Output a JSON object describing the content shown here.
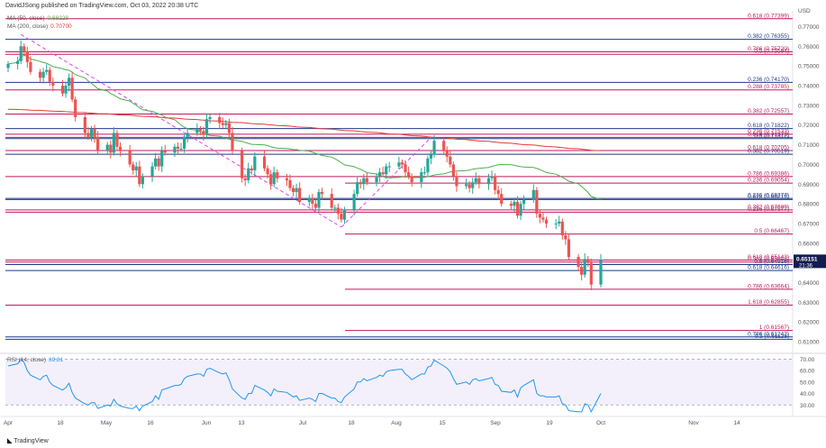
{
  "header": {
    "text": "DavidJSong published on TradingView.com, Oct 03, 2022 20:38 UTC"
  },
  "footer": {
    "brand": "TradingView"
  },
  "legend": {
    "ma50": {
      "label": "MA (50, close)",
      "value": "0.68228",
      "color": "#4caf50"
    },
    "ma200": {
      "label": "MA (200, close)",
      "value": "0.70700",
      "color": "#e53935"
    },
    "rsi": {
      "label": "RSI (14, close)",
      "value": "39.81",
      "color": "#2196f3"
    }
  },
  "price_axis": {
    "unit": "USD",
    "ticks": [
      "0.77000",
      "0.76000",
      "0.75000",
      "0.74000",
      "0.73000",
      "0.72000",
      "0.71000",
      "0.70000",
      "0.69000",
      "0.68000",
      "0.67000",
      "0.66000",
      "0.65000",
      "0.64000",
      "0.63000",
      "0.62000",
      "0.61000"
    ],
    "current_price": "0.65151",
    "countdown": "21:36"
  },
  "rsi_axis": {
    "ticks": [
      "70.00",
      "60.00",
      "50.00",
      "40.00",
      "30.00"
    ]
  },
  "time_axis": {
    "ticks": [
      "Apr",
      "18",
      "May",
      "16",
      "Jun",
      "13",
      "Jul",
      "18",
      "Aug",
      "15",
      "Sep",
      "19",
      "Oct",
      "Nov",
      "14"
    ]
  },
  "chart_data": [
    {
      "type": "line",
      "subtype": "candlestick",
      "title": "",
      "y_unit": "USD",
      "ylim": [
        0.605,
        0.778
      ],
      "colors": {
        "up": "#26a69a",
        "down": "#ef5350"
      },
      "candles_note": "approximate daily OHLC, Apr–Oct 2022",
      "x": [
        "Apr 01",
        "Apr 04",
        "Apr 05",
        "Apr 06",
        "Apr 07",
        "Apr 08",
        "Apr 11",
        "Apr 12",
        "Apr 13",
        "Apr 14",
        "Apr 15",
        "Apr 18",
        "Apr 19",
        "Apr 20",
        "Apr 21",
        "Apr 22",
        "Apr 25",
        "Apr 26",
        "Apr 27",
        "Apr 28",
        "Apr 29",
        "May 02",
        "May 03",
        "May 04",
        "May 05",
        "May 06",
        "May 09",
        "May 10",
        "May 11",
        "May 12",
        "May 13",
        "May 16",
        "May 17",
        "May 18",
        "May 19",
        "May 20",
        "May 23",
        "May 24",
        "May 25",
        "May 26",
        "May 27",
        "May 30",
        "May 31",
        "Jun 01",
        "Jun 02",
        "Jun 03",
        "Jun 06",
        "Jun 07",
        "Jun 08",
        "Jun 09",
        "Jun 10",
        "Jun 13",
        "Jun 14",
        "Jun 15",
        "Jun 16",
        "Jun 17",
        "Jun 20",
        "Jun 21",
        "Jun 22",
        "Jun 23",
        "Jun 24",
        "Jun 27",
        "Jun 28",
        "Jun 29",
        "Jun 30",
        "Jul 01",
        "Jul 04",
        "Jul 05",
        "Jul 06",
        "Jul 07",
        "Jul 08",
        "Jul 11",
        "Jul 12",
        "Jul 13",
        "Jul 14",
        "Jul 15",
        "Jul 18",
        "Jul 19",
        "Jul 20",
        "Jul 21",
        "Jul 22",
        "Jul 25",
        "Jul 26",
        "Jul 27",
        "Jul 28",
        "Jul 29",
        "Aug 01",
        "Aug 02",
        "Aug 03",
        "Aug 04",
        "Aug 05",
        "Aug 08",
        "Aug 09",
        "Aug 10",
        "Aug 11",
        "Aug 12",
        "Aug 15",
        "Aug 16",
        "Aug 17",
        "Aug 18",
        "Aug 19",
        "Aug 22",
        "Aug 23",
        "Aug 24",
        "Aug 25",
        "Aug 26",
        "Aug 29",
        "Aug 30",
        "Aug 31",
        "Sep 01",
        "Sep 02",
        "Sep 05",
        "Sep 06",
        "Sep 07",
        "Sep 08",
        "Sep 09",
        "Sep 12",
        "Sep 13",
        "Sep 14",
        "Sep 15",
        "Sep 16",
        "Sep 19",
        "Sep 20",
        "Sep 21",
        "Sep 22",
        "Sep 23",
        "Sep 26",
        "Sep 27",
        "Sep 28",
        "Sep 29",
        "Sep 30",
        "Oct 03"
      ],
      "close": [
        0.751,
        0.7525,
        0.76,
        0.7575,
        0.752,
        0.747,
        0.744,
        0.747,
        0.748,
        0.742,
        0.74,
        0.736,
        0.74,
        0.744,
        0.733,
        0.724,
        0.716,
        0.714,
        0.718,
        0.714,
        0.707,
        0.71,
        0.706,
        0.716,
        0.709,
        0.707,
        0.7,
        0.697,
        0.699,
        0.69,
        0.694,
        0.699,
        0.703,
        0.699,
        0.707,
        0.706,
        0.709,
        0.708,
        0.708,
        0.714,
        0.716,
        0.718,
        0.717,
        0.715,
        0.723,
        0.724,
        0.721,
        0.72,
        0.721,
        0.716,
        0.707,
        0.693,
        0.692,
        0.698,
        0.697,
        0.704,
        0.698,
        0.695,
        0.69,
        0.696,
        0.693,
        0.692,
        0.688,
        0.686,
        0.688,
        0.681,
        0.683,
        0.68,
        0.678,
        0.686,
        0.685,
        0.678,
        0.678,
        0.675,
        0.672,
        0.677,
        0.685,
        0.691,
        0.69,
        0.693,
        0.691,
        0.694,
        0.696,
        0.695,
        0.699,
        0.699,
        0.701,
        0.7,
        0.696,
        0.694,
        0.691,
        0.696,
        0.696,
        0.703,
        0.705,
        0.712,
        0.707,
        0.704,
        0.7,
        0.694,
        0.689,
        0.69,
        0.688,
        0.691,
        0.693,
        0.69,
        0.693,
        0.694,
        0.687,
        0.685,
        0.68,
        0.679,
        0.681,
        0.674,
        0.68,
        0.682,
        0.687,
        0.675,
        0.673,
        0.672,
        0.67,
        0.67,
        0.671,
        0.664,
        0.662,
        0.653,
        0.648,
        0.644,
        0.652,
        0.65,
        0.639,
        0.6515
      ],
      "ma50_endpoints": [
        [
          "Apr 04",
          0.734
        ],
        [
          "Oct 03",
          0.6823
        ]
      ],
      "ma200_endpoints": [
        [
          "Apr 04",
          0.728
        ],
        [
          "Oct 03",
          0.707
        ]
      ],
      "fib_levels": [
        {
          "label": "0.618 (0.77399)",
          "value": 0.77399,
          "color": "#c2185b"
        },
        {
          "label": "0.382 (0.76355)",
          "value": 0.76355,
          "color": "#1e3a8a"
        },
        {
          "label": "0.786 (0.75720)",
          "value": 0.7572,
          "color": "#c2185b"
        },
        {
          "label": "0.5 (0.75594)",
          "value": 0.75594,
          "color": "#c2185b"
        },
        {
          "label": "0.236 (0.74170)",
          "value": 0.7417,
          "color": "#1e3a8a"
        },
        {
          "label": "0.288 (0.73785)",
          "value": 0.73785,
          "color": "#c2185b"
        },
        {
          "label": "0.382 (0.72557)",
          "value": 0.72557,
          "color": "#c2185b"
        },
        {
          "label": "0.618 (0.71822)",
          "value": 0.71822,
          "color": "#1e3a8a"
        },
        {
          "label": "0.236 (0.71533)",
          "value": 0.71533,
          "color": "#c2185b"
        },
        {
          "label": "0.618 (0.71373)",
          "value": 0.71373,
          "color": "#c2185b"
        },
        {
          "label": "0.5 (0.71312)",
          "value": 0.71312,
          "color": "#1e3a8a"
        },
        {
          "label": "0.618 (0.70705)",
          "value": 0.70705,
          "color": "#c2185b"
        },
        {
          "label": "0.382 (0.70519)",
          "value": 0.70519,
          "color": "#1e3a8a"
        },
        {
          "label": "0.786 (0.69386)",
          "value": 0.69386,
          "color": "#c2185b"
        },
        {
          "label": "0.236 (0.69054)",
          "value": 0.69054,
          "color": "#c2185b"
        },
        {
          "label": "0.236 (0.68277)",
          "value": 0.68277,
          "color": "#1e3a8a"
        },
        {
          "label": "0.618 (0.68219)",
          "value": 0.68219,
          "color": "#1e3a8a"
        },
        {
          "label": "0.382 (0.67689)",
          "value": 0.67689,
          "color": "#c2185b"
        },
        {
          "label": "0.236 (0.67577)",
          "value": 0.67577,
          "color": "#c2185b"
        },
        {
          "label": "0.5 (0.66467)",
          "value": 0.66467,
          "color": "#c2185b"
        },
        {
          "label": "0.618 (0.65143)",
          "value": 0.65143,
          "color": "#c2185b"
        },
        {
          "label": "0.382 (0.65048)",
          "value": 0.65048,
          "color": "#c2185b"
        },
        {
          "label": "0.5 (0.64916)",
          "value": 0.64916,
          "color": "#1e3a8a"
        },
        {
          "label": "0.618 (0.64616)",
          "value": 0.64616,
          "color": "#1e3a8a"
        },
        {
          "label": "0.786 (0.63664)",
          "value": 0.63664,
          "color": "#c2185b"
        },
        {
          "label": "1.618 (0.62855)",
          "value": 0.62855,
          "color": "#c2185b"
        },
        {
          "label": "1 (0.61567)",
          "value": 0.61567,
          "color": "#c2185b"
        },
        {
          "label": "0.786 (0.61242)",
          "value": 0.61242,
          "color": "#1e3a8a"
        },
        {
          "label": "0.5 (0.61123)",
          "value": 0.61123,
          "color": "#1e3a8a"
        }
      ],
      "trendlines": [
        {
          "from": [
            "Apr 05",
            0.766
          ],
          "to": [
            "Jul 14",
            0.6682
          ],
          "style": "dashed",
          "color": "#e040fb"
        },
        {
          "from": [
            "Jul 14",
            0.6682
          ],
          "to": [
            "Aug 11",
            0.7137
          ],
          "style": "dashed",
          "color": "#e040fb"
        }
      ]
    },
    {
      "type": "line",
      "title": "",
      "series": [
        {
          "name": "RSI (14, close)",
          "values": [
            64,
            66,
            70,
            67,
            60,
            56,
            52,
            55,
            56,
            50,
            47,
            43,
            45,
            49,
            41,
            36,
            31,
            30,
            32,
            32,
            27,
            30,
            29,
            35,
            31,
            29,
            27,
            27,
            29,
            25,
            29,
            33,
            38,
            35,
            43,
            44,
            47,
            47,
            48,
            53,
            55,
            57,
            57,
            55,
            61,
            62,
            58,
            57,
            58,
            52,
            44,
            36,
            35,
            40,
            40,
            47,
            43,
            41,
            38,
            44,
            42,
            41,
            39,
            37,
            38,
            34,
            36,
            35,
            33,
            40,
            40,
            36,
            36,
            33,
            32,
            37,
            44,
            50,
            50,
            53,
            51,
            54,
            56,
            55,
            59,
            60,
            61,
            61,
            57,
            55,
            52,
            57,
            57,
            63,
            64,
            69,
            64,
            62,
            59,
            53,
            48,
            50,
            48,
            52,
            53,
            51,
            53,
            54,
            48,
            47,
            42,
            41,
            43,
            37,
            45,
            47,
            52,
            40,
            38,
            38,
            37,
            37,
            38,
            31,
            30,
            25,
            24,
            24,
            31,
            30,
            24,
            40
          ]
        }
      ],
      "ylim": [
        20,
        75
      ],
      "levels": [
        70,
        30
      ]
    }
  ]
}
